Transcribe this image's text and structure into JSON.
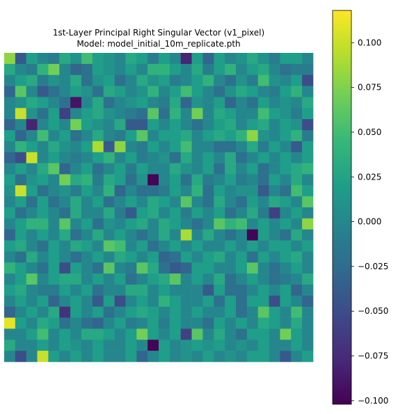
{
  "chart_data": {
    "type": "heatmap",
    "title": "1st-Layer Principal Right Singular Vector (v1_pixel)",
    "subtitle": "Model: model_initial_10m_replicate.pth",
    "xlabel": "",
    "ylabel": "",
    "axes_visible": false,
    "grid": false,
    "colormap": "viridis",
    "colormap_stops": [
      "#440154",
      "#482878",
      "#3e4989",
      "#31688e",
      "#26828e",
      "#1f9e89",
      "#35b779",
      "#6ece58",
      "#b5de2b",
      "#fde725"
    ],
    "colorbar": {
      "position": "right",
      "vmin": -0.102,
      "vmax": 0.118,
      "ticks": [
        -0.1,
        -0.075,
        -0.05,
        -0.025,
        0.0,
        0.025,
        0.05,
        0.075,
        0.1
      ],
      "tick_labels": [
        "−0.100",
        "−0.075",
        "−0.050",
        "−0.025",
        "0.000",
        "0.025",
        "0.050",
        "0.075",
        "0.100"
      ]
    },
    "rows": 28,
    "cols": 28,
    "values": [
      [
        0.08,
        -0.04,
        0.02,
        0.0,
        -0.01,
        0.03,
        0.01,
        0.05,
        0.02,
        0.01,
        0.0,
        0.03,
        0.02,
        -0.01,
        0.02,
        0.0,
        -0.08,
        0.02,
        -0.03,
        0.02,
        0.0,
        0.01,
        0.03,
        0.01,
        -0.01,
        0.02,
        0.02,
        0.0
      ],
      [
        0.03,
        0.0,
        -0.01,
        0.04,
        0.07,
        0.0,
        -0.03,
        -0.02,
        0.02,
        0.01,
        0.0,
        0.02,
        0.0,
        0.04,
        0.04,
        0.02,
        0.0,
        0.03,
        -0.01,
        0.02,
        0.04,
        0.0,
        0.02,
        0.03,
        0.0,
        -0.02,
        -0.01,
        -0.01
      ],
      [
        0.0,
        0.02,
        0.03,
        -0.01,
        0.01,
        0.0,
        0.03,
        -0.02,
        0.01,
        0.02,
        -0.02,
        0.0,
        0.03,
        0.01,
        0.02,
        -0.01,
        0.0,
        0.02,
        0.04,
        0.0,
        -0.02,
        0.01,
        -0.01,
        0.05,
        0.01,
        0.0,
        0.02,
        -0.05
      ],
      [
        -0.03,
        0.06,
        0.0,
        -0.04,
        -0.02,
        0.0,
        0.02,
        0.01,
        -0.02,
        0.03,
        0.02,
        0.0,
        0.01,
        0.04,
        0.0,
        0.02,
        0.05,
        0.02,
        0.0,
        -0.02,
        0.01,
        0.03,
        0.02,
        0.0,
        -0.01,
        0.02,
        0.04,
        0.0
      ],
      [
        0.0,
        0.01,
        0.03,
        0.02,
        0.0,
        -0.02,
        -0.09,
        0.0,
        0.03,
        -0.02,
        0.0,
        0.01,
        0.02,
        0.0,
        -0.01,
        0.03,
        -0.03,
        0.01,
        0.0,
        0.02,
        -0.03,
        0.0,
        -0.02,
        0.02,
        0.0,
        0.01,
        0.0,
        0.03
      ],
      [
        0.0,
        0.1,
        0.01,
        -0.02,
        0.02,
        -0.06,
        0.0,
        0.02,
        0.03,
        0.01,
        0.0,
        -0.01,
        -0.02,
        0.06,
        -0.02,
        0.04,
        0.0,
        0.07,
        0.0,
        0.03,
        0.02,
        0.0,
        0.0,
        0.05,
        0.02,
        0.01,
        -0.01,
        0.02
      ],
      [
        -0.03,
        0.0,
        -0.08,
        0.0,
        0.02,
        0.0,
        0.07,
        0.02,
        0.01,
        0.0,
        0.03,
        -0.04,
        -0.04,
        0.02,
        0.0,
        0.02,
        0.0,
        -0.02,
        0.0,
        0.02,
        0.03,
        0.0,
        0.02,
        0.03,
        0.0,
        0.02,
        0.01,
        -0.05
      ],
      [
        0.02,
        -0.03,
        0.0,
        0.05,
        0.0,
        0.02,
        -0.02,
        0.0,
        0.03,
        0.0,
        -0.01,
        0.02,
        0.06,
        0.0,
        0.02,
        0.02,
        0.03,
        0.0,
        0.02,
        0.03,
        0.02,
        0.04,
        0.08,
        0.01,
        0.0,
        0.02,
        0.04,
        -0.01
      ],
      [
        0.0,
        0.04,
        0.02,
        0.0,
        0.03,
        0.01,
        0.0,
        0.02,
        0.09,
        -0.04,
        0.08,
        0.0,
        -0.01,
        0.02,
        0.0,
        0.02,
        0.05,
        0.0,
        0.0,
        -0.02,
        -0.02,
        0.0,
        0.03,
        -0.01,
        0.02,
        0.0,
        -0.04,
        0.02
      ],
      [
        -0.03,
        -0.05,
        0.1,
        0.0,
        0.02,
        0.0,
        -0.01,
        0.0,
        0.02,
        0.04,
        0.0,
        0.02,
        -0.01,
        0.0,
        0.01,
        -0.02,
        0.03,
        0.0,
        0.02,
        0.0,
        0.03,
        -0.02,
        0.0,
        0.02,
        0.0,
        0.02,
        0.0,
        0.02
      ],
      [
        0.0,
        0.02,
        0.0,
        0.03,
        0.06,
        -0.03,
        0.0,
        0.02,
        -0.02,
        0.0,
        0.02,
        -0.01,
        0.02,
        0.0,
        0.0,
        0.03,
        0.01,
        0.0,
        0.02,
        -0.02,
        0.03,
        0.0,
        0.02,
        -0.02,
        0.0,
        0.02,
        0.03,
        0.04
      ],
      [
        0.02,
        -0.02,
        0.01,
        0.02,
        0.0,
        0.07,
        0.03,
        0.04,
        -0.01,
        0.03,
        0.02,
        -0.02,
        0.01,
        -0.1,
        0.0,
        0.02,
        -0.02,
        0.03,
        -0.01,
        0.0,
        0.02,
        -0.01,
        0.0,
        -0.02,
        0.02,
        0.0,
        0.03,
        0.0
      ],
      [
        0.01,
        0.1,
        0.02,
        -0.02,
        0.0,
        0.01,
        -0.01,
        0.02,
        0.0,
        0.04,
        -0.03,
        0.0,
        -0.02,
        -0.02,
        -0.01,
        0.02,
        0.0,
        0.04,
        -0.02,
        0.02,
        0.0,
        0.01,
        0.01,
        -0.04,
        0.0,
        -0.02,
        0.05,
        0.02
      ],
      [
        0.0,
        0.02,
        -0.02,
        0.02,
        -0.02,
        0.0,
        0.03,
        0.0,
        0.02,
        -0.02,
        0.0,
        0.02,
        0.0,
        0.03,
        0.02,
        0.0,
        0.06,
        0.0,
        -0.02,
        0.03,
        0.0,
        -0.02,
        0.02,
        0.0,
        0.03,
        0.02,
        0.0,
        0.06
      ],
      [
        0.02,
        -0.02,
        0.0,
        0.02,
        0.0,
        -0.02,
        0.03,
        0.0,
        0.0,
        0.03,
        -0.01,
        -0.04,
        0.02,
        0.03,
        0.0,
        0.02,
        -0.01,
        0.02,
        0.0,
        0.02,
        -0.02,
        0.0,
        0.03,
        -0.01,
        -0.06,
        0.0,
        0.02,
        0.0
      ],
      [
        0.0,
        0.02,
        0.04,
        0.04,
        0.0,
        0.06,
        0.0,
        0.02,
        -0.02,
        0.01,
        0.0,
        0.02,
        0.03,
        0.0,
        0.03,
        0.02,
        0.0,
        -0.02,
        0.0,
        0.06,
        0.04,
        0.05,
        0.0,
        0.02,
        0.0,
        0.02,
        0.0,
        0.08
      ],
      [
        -0.03,
        0.02,
        0.0,
        0.02,
        0.0,
        0.03,
        -0.02,
        0.0,
        0.03,
        0.0,
        0.02,
        0.0,
        -0.02,
        0.0,
        0.03,
        0.0,
        0.09,
        0.0,
        0.03,
        0.0,
        -0.02,
        0.0,
        -0.1,
        0.02,
        0.0,
        -0.02,
        0.03,
        0.0
      ],
      [
        0.02,
        0.03,
        0.0,
        -0.02,
        0.02,
        0.0,
        0.03,
        0.02,
        0.0,
        0.06,
        0.05,
        0.0,
        0.02,
        -0.02,
        0.0,
        0.02,
        0.0,
        0.02,
        0.0,
        0.0,
        0.02,
        0.0,
        0.02,
        0.0,
        0.02,
        0.02,
        0.0,
        0.02
      ],
      [
        0.0,
        -0.02,
        0.03,
        0.0,
        0.02,
        0.0,
        -0.02,
        0.0,
        0.02,
        0.0,
        0.03,
        0.02,
        0.0,
        0.02,
        -0.03,
        -0.02,
        0.02,
        0.0,
        0.02,
        0.03,
        0.0,
        0.02,
        -0.02,
        0.02,
        0.0,
        0.02,
        0.03,
        0.0
      ],
      [
        0.04,
        0.02,
        0.0,
        -0.02,
        0.02,
        -0.05,
        0.02,
        0.0,
        -0.02,
        0.06,
        0.0,
        -0.01,
        0.06,
        0.03,
        -0.02,
        -0.04,
        -0.03,
        0.02,
        0.02,
        0.0,
        0.0,
        0.02,
        0.06,
        0.0,
        -0.02,
        0.0,
        0.02,
        0.0
      ],
      [
        0.0,
        0.02,
        0.06,
        0.0,
        0.02,
        0.03,
        0.03,
        0.0,
        0.02,
        0.0,
        0.02,
        -0.02,
        0.0,
        0.02,
        0.03,
        0.06,
        0.0,
        0.02,
        0.0,
        0.03,
        -0.02,
        0.0,
        0.02,
        0.0,
        -0.02,
        -0.01,
        0.0,
        0.03
      ],
      [
        0.02,
        0.03,
        0.0,
        -0.01,
        -0.01,
        0.02,
        0.0,
        0.02,
        -0.02,
        0.0,
        0.0,
        0.03,
        0.03,
        0.0,
        0.02,
        0.0,
        0.0,
        0.0,
        -0.04,
        0.02,
        -0.02,
        -0.02,
        0.0,
        0.02,
        0.0,
        0.02,
        -0.03,
        0.0
      ],
      [
        0.0,
        0.02,
        0.0,
        0.02,
        -0.03,
        0.0,
        0.02,
        0.0,
        -0.04,
        0.02,
        -0.05,
        0.0,
        0.02,
        0.0,
        0.04,
        0.02,
        0.0,
        0.0,
        0.02,
        -0.02,
        0.02,
        -0.02,
        0.02,
        0.02,
        -0.05,
        0.02,
        0.0,
        -0.03
      ],
      [
        -0.03,
        0.0,
        0.02,
        0.0,
        0.03,
        -0.07,
        0.02,
        0.0,
        0.02,
        -0.02,
        0.0,
        0.02,
        0.03,
        0.02,
        0.0,
        0.02,
        0.0,
        0.02,
        0.0,
        0.0,
        0.02,
        -0.02,
        0.0,
        0.06,
        0.02,
        0.0,
        0.05,
        0.0
      ],
      [
        0.11,
        0.02,
        0.0,
        0.03,
        0.02,
        -0.02,
        0.0,
        -0.02,
        -0.03,
        0.0,
        0.02,
        -0.01,
        0.0,
        0.02,
        -0.01,
        0.02,
        0.0,
        0.0,
        -0.02,
        0.02,
        0.0,
        0.02,
        0.0,
        0.03,
        0.02,
        0.0,
        0.03,
        0.0
      ],
      [
        0.0,
        0.0,
        0.02,
        0.05,
        0.0,
        0.02,
        0.0,
        0.03,
        0.03,
        0.02,
        0.0,
        0.02,
        0.07,
        0.02,
        0.0,
        0.02,
        -0.06,
        0.06,
        0.0,
        0.03,
        0.0,
        -0.02,
        0.02,
        0.02,
        0.0,
        0.07,
        0.02,
        0.0
      ],
      [
        0.03,
        0.0,
        0.0,
        0.02,
        0.0,
        0.02,
        0.01,
        0.0,
        0.02,
        0.0,
        0.0,
        0.02,
        0.0,
        -0.1,
        0.02,
        0.0,
        0.01,
        0.02,
        0.01,
        0.02,
        0.0,
        0.01,
        0.0,
        0.02,
        0.0,
        0.0,
        0.02,
        0.0
      ],
      [
        0.0,
        -0.05,
        0.0,
        0.1,
        0.02,
        0.0,
        0.02,
        0.0,
        0.02,
        0.0,
        0.0,
        0.02,
        -0.03,
        0.0,
        0.02,
        0.0,
        0.01,
        0.0,
        0.02,
        0.0,
        0.01,
        0.0,
        0.02,
        0.02,
        0.0,
        -0.04,
        0.0,
        0.02
      ]
    ]
  }
}
